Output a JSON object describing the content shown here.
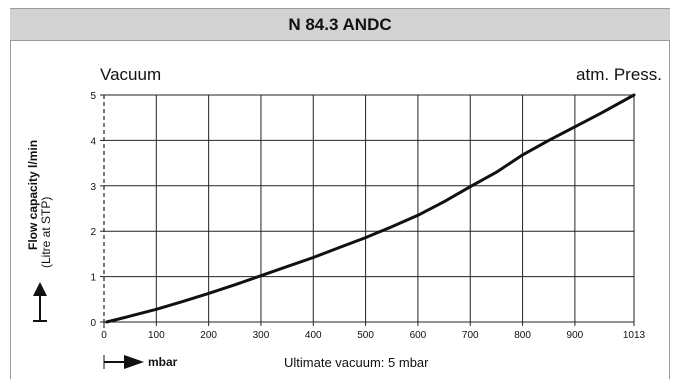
{
  "header": {
    "title": "N 84.3 ANDC"
  },
  "chart_data": {
    "type": "line",
    "title": "N 84.3 ANDC",
    "corner_left": "Vacuum",
    "corner_right": "atm. Press.",
    "xlabel": "mbar",
    "ylabel": "Flow capacity l/min",
    "ylabel_sub": "(Litre at STP)",
    "note": "Ultimate vacuum: 5 mbar",
    "x_ticks": [
      0,
      100,
      200,
      300,
      400,
      500,
      600,
      700,
      800,
      900,
      1013
    ],
    "x_tick_labels": [
      "0",
      "100",
      "200",
      "300",
      "400",
      "500",
      "600",
      "700",
      "800",
      "900",
      "1013"
    ],
    "y_ticks": [
      0,
      1,
      2,
      3,
      4,
      5
    ],
    "y_tick_labels": [
      "0",
      "1",
      "2",
      "3",
      "4",
      "5"
    ],
    "xlim": [
      0,
      1013
    ],
    "ylim": [
      0,
      5
    ],
    "grid": true,
    "series": [
      {
        "x": [
          5,
          50,
          100,
          150,
          200,
          250,
          300,
          350,
          400,
          450,
          500,
          550,
          600,
          650,
          700,
          750,
          800,
          850,
          900,
          950,
          1013
        ],
        "values": [
          0.0,
          0.13,
          0.28,
          0.45,
          0.63,
          0.82,
          1.02,
          1.22,
          1.42,
          1.64,
          1.86,
          2.1,
          2.35,
          2.65,
          2.98,
          3.3,
          3.68,
          4.0,
          4.3,
          4.6,
          5.0
        ]
      }
    ]
  }
}
